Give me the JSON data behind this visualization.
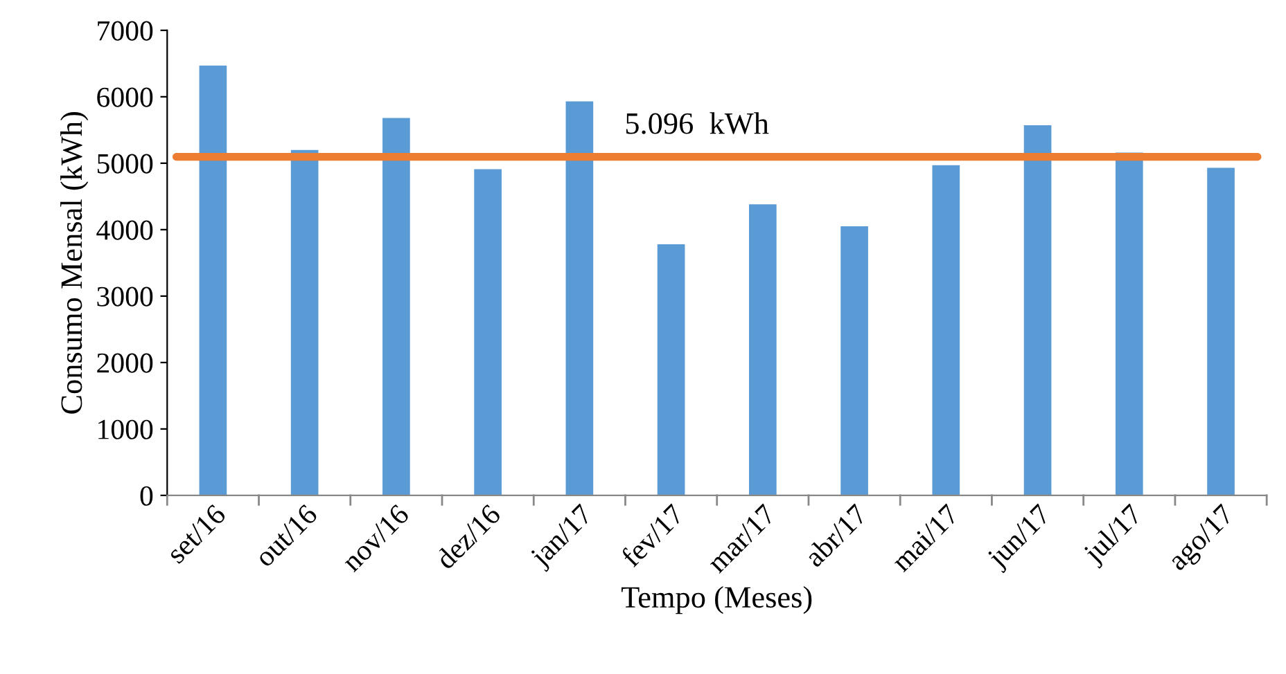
{
  "chart_data": {
    "type": "bar",
    "xlabel": "Tempo (Meses)",
    "ylabel": "Consumo Mensal (kWh)",
    "categories": [
      "set/16",
      "out/16",
      "nov/16",
      "dez/16",
      "jan/17",
      "fev/17",
      "mar/17",
      "abr/17",
      "mai/17",
      "jun/17",
      "jul/17",
      "ago/17"
    ],
    "values": [
      6470,
      5200,
      5680,
      4910,
      5930,
      3780,
      4380,
      4050,
      4970,
      5570,
      5160,
      4930
    ],
    "color": "#5b9bd5",
    "ylim": [
      0,
      7000
    ],
    "yticks": [
      0,
      1000,
      2000,
      3000,
      4000,
      5000,
      6000,
      7000
    ],
    "ref_lines": [
      {
        "axis": "y",
        "value": 5096,
        "label": "5.096  kWh",
        "color": "#ed7d31",
        "line_style": "solid"
      }
    ],
    "grid": false,
    "legend": false
  }
}
